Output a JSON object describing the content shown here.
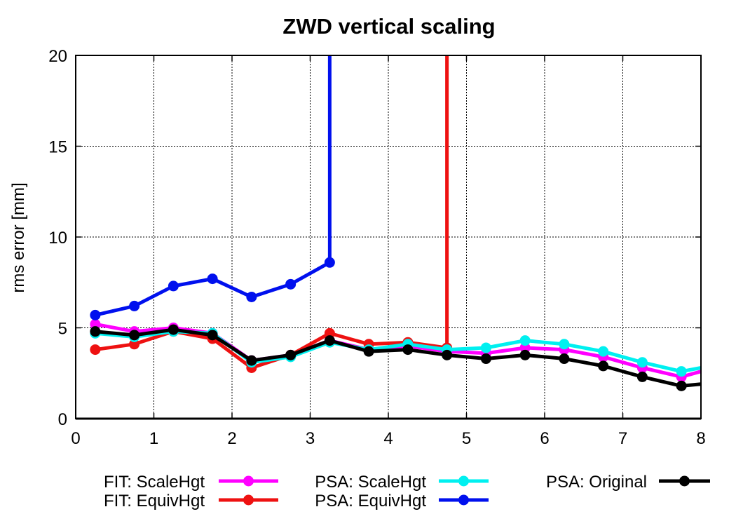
{
  "chart_data": {
    "type": "line",
    "title": "ZWD vertical scaling",
    "xlabel": "",
    "ylabel": "rms error [mm]",
    "xlim": [
      0,
      8
    ],
    "ylim": [
      0,
      20
    ],
    "xticks": [
      "0",
      "1",
      "2",
      "3",
      "4",
      "5",
      "6",
      "7",
      "8"
    ],
    "yticks": [
      "0",
      "5",
      "10",
      "15",
      "20"
    ],
    "grid": true,
    "legend_position": "bottom",
    "series": [
      {
        "name": "FIT: ScaleHgt",
        "color": "#ff00ff",
        "x": [
          0.25,
          0.75,
          1.25,
          1.75,
          2.25,
          2.75,
          3.25,
          3.75,
          4.25,
          4.75,
          5.25,
          5.75,
          6.25,
          6.75,
          7.25,
          7.75,
          8.0
        ],
        "y": [
          5.2,
          4.8,
          5.0,
          4.7,
          3.2,
          3.5,
          4.3,
          3.8,
          4.0,
          3.7,
          3.6,
          3.9,
          3.8,
          3.4,
          2.8,
          2.3,
          2.6
        ]
      },
      {
        "name": "FIT: EquivHgt",
        "color": "#ee1111",
        "x": [
          0.25,
          0.75,
          1.25,
          1.75,
          2.25,
          2.75,
          3.25,
          3.75,
          4.25,
          4.75,
          4.75
        ],
        "y": [
          3.8,
          4.1,
          4.8,
          4.4,
          2.8,
          3.5,
          4.7,
          4.1,
          4.2,
          3.9,
          20.0
        ]
      },
      {
        "name": "PSA: ScaleHgt",
        "color": "#00f0f0",
        "x": [
          0.25,
          0.75,
          1.25,
          1.75,
          2.25,
          2.75,
          3.25,
          3.75,
          4.25,
          4.75,
          5.25,
          5.75,
          6.25,
          6.75,
          7.25,
          7.75,
          8.0
        ],
        "y": [
          4.7,
          4.5,
          4.8,
          4.7,
          3.1,
          3.4,
          4.2,
          3.8,
          4.1,
          3.8,
          3.9,
          4.3,
          4.1,
          3.7,
          3.1,
          2.6,
          2.8
        ]
      },
      {
        "name": "PSA: EquivHgt",
        "color": "#0010ee",
        "x": [
          0.25,
          0.75,
          1.25,
          1.75,
          2.25,
          2.75,
          3.25,
          3.25
        ],
        "y": [
          5.7,
          6.2,
          7.3,
          7.7,
          6.7,
          7.4,
          8.6,
          20.0
        ]
      },
      {
        "name": "PSA: Original",
        "color": "#000000",
        "x": [
          0.25,
          0.75,
          1.25,
          1.75,
          2.25,
          2.75,
          3.25,
          3.75,
          4.25,
          4.75,
          5.25,
          5.75,
          6.25,
          6.75,
          7.25,
          7.75,
          8.0
        ],
        "y": [
          4.8,
          4.6,
          4.9,
          4.6,
          3.2,
          3.5,
          4.3,
          3.7,
          3.8,
          3.5,
          3.3,
          3.5,
          3.3,
          2.9,
          2.3,
          1.8,
          1.9
        ]
      }
    ]
  }
}
